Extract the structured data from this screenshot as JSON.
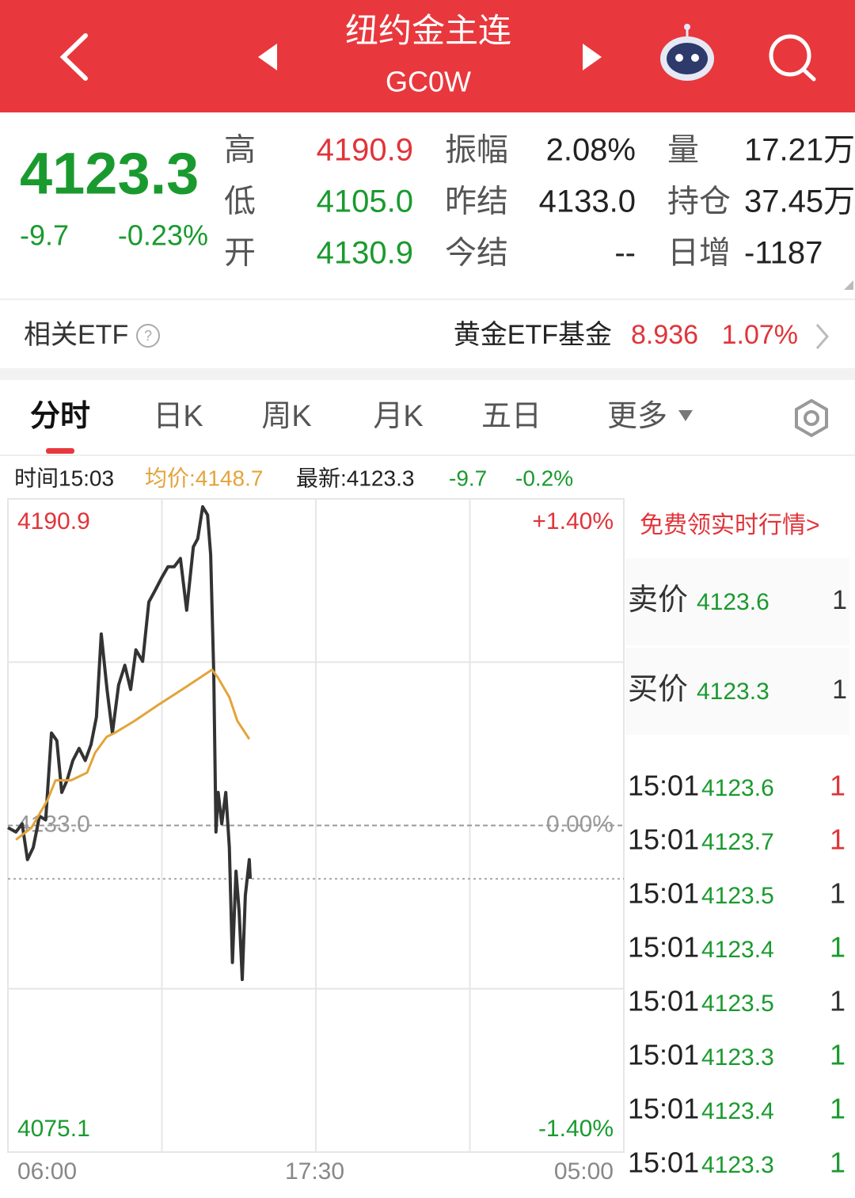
{
  "header": {
    "title": "纽约金主连",
    "code": "GC0W"
  },
  "quote": {
    "price": "4123.3",
    "change": "-9.7",
    "change_pct": "-0.23%",
    "color": "#1a9a2e"
  },
  "stats": [
    [
      {
        "label": "高",
        "value": "4190.9",
        "color": "#e0343a"
      },
      {
        "label": "振幅",
        "value": "2.08%",
        "color": "#222222"
      },
      {
        "label": "量",
        "value": "17.21万",
        "color": "#222222"
      }
    ],
    [
      {
        "label": "低",
        "value": "4105.0",
        "color": "#1a9a2e"
      },
      {
        "label": "昨结",
        "value": "4133.0",
        "color": "#222222"
      },
      {
        "label": "持仓",
        "value": "37.45万",
        "color": "#222222"
      }
    ],
    [
      {
        "label": "开",
        "value": "4130.9",
        "color": "#1a9a2e"
      },
      {
        "label": "今结",
        "value": "--",
        "color": "#222222"
      },
      {
        "label": "日增",
        "value": "-1187",
        "color": "#222222"
      }
    ]
  ],
  "etf": {
    "label": "相关ETF",
    "name": "黄金ETF基金",
    "price": "8.936",
    "pct": "1.07%"
  },
  "tabs": [
    "分时",
    "日K",
    "周K",
    "月K",
    "五日",
    "更多"
  ],
  "info": {
    "time": "时间15:03",
    "avg": "均价:4148.7",
    "latest": "最新:4123.3",
    "change": "-9.7",
    "pct": "-0.2%"
  },
  "chart_data": {
    "type": "line",
    "xlim": [
      0,
      1380
    ],
    "xticks": [
      {
        "value": 0,
        "label": "06:00"
      },
      {
        "value": 690,
        "label": "17:30"
      },
      {
        "value": 1380,
        "label": "05:00"
      }
    ],
    "ylim": [
      4075.1,
      4190.9
    ],
    "yticks": [
      4190.9,
      {
        "value": 4133,
        "label": "4133.0"
      },
      4075.1
    ],
    "y2lim": [
      -1.4,
      1.4
    ],
    "y2ticks": [
      {
        "value": 1.4,
        "label": "+1.40%"
      },
      {
        "value": 0,
        "label": "0.00%"
      },
      {
        "value": -1.4,
        "label": "-1.40%"
      }
    ],
    "series": [
      {
        "color": "#333333",
        "x": [
          0,
          18,
          32,
          44,
          57,
          71,
          85,
          98,
          110,
          121,
          133,
          146,
          160,
          174,
          187,
          199,
          210,
          223,
          235,
          249,
          263,
          276,
          288,
          303,
          317,
          331,
          345,
          360,
          374,
          388,
          402,
          417,
          427,
          438,
          449,
          456,
          463,
          468,
          473,
          481,
          490,
          498,
          505,
          513,
          520,
          527,
          534,
          543,
          545
        ],
        "values": [
          4132.6,
          4131.8,
          4133.3,
          4126.8,
          4129.0,
          4134.7,
          4134.0,
          4149.8,
          4148.4,
          4139.0,
          4141.2,
          4144.8,
          4147.0,
          4144.8,
          4147.7,
          4152.7,
          4167.8,
          4157.7,
          4149.8,
          4158.5,
          4162.1,
          4157.7,
          4164.9,
          4162.8,
          4173.6,
          4175.7,
          4177.9,
          4180.0,
          4180.0,
          4181.5,
          4172.1,
          4183.6,
          4185.1,
          4190.9,
          4189.4,
          4182.2,
          4160.6,
          4131.8,
          4139.0,
          4133.3,
          4139.0,
          4129.0,
          4108.1,
          4124.7,
          4117.5,
          4105.0,
          4120.3,
          4126.8,
          4123.3
        ]
      },
      {
        "color": "#e3a43a",
        "x": [
          18,
          53,
          89,
          107,
          142,
          178,
          196,
          222,
          240,
          285,
          338,
          392,
          459,
          472,
          498,
          516,
          543
        ],
        "values": [
          4130.4,
          4132.6,
          4137.6,
          4141.2,
          4141.2,
          4142.6,
          4146.2,
          4149.1,
          4149.8,
          4152.0,
          4154.9,
          4157.7,
          4161.3,
          4159.9,
          4156.3,
          4152.0,
          4148.7
        ]
      }
    ]
  },
  "order_book": {
    "promo": "免费领实时行情>",
    "quotes": [
      {
        "label": "卖价",
        "price": "4123.6",
        "volume": "1"
      },
      {
        "label": "买价",
        "price": "4123.3",
        "volume": "1"
      }
    ],
    "trades": [
      {
        "time": "15:01",
        "price": "4123.6",
        "volume": "1",
        "color": "#e0343a"
      },
      {
        "time": "15:01",
        "price": "4123.7",
        "volume": "1",
        "color": "#e0343a"
      },
      {
        "time": "15:01",
        "price": "4123.5",
        "volume": "1",
        "color": "#333333"
      },
      {
        "time": "15:01",
        "price": "4123.4",
        "volume": "1",
        "color": "#1a9a2e"
      },
      {
        "time": "15:01",
        "price": "4123.5",
        "volume": "1",
        "color": "#333333"
      },
      {
        "time": "15:01",
        "price": "4123.3",
        "volume": "1",
        "color": "#1a9a2e"
      },
      {
        "time": "15:01",
        "price": "4123.4",
        "volume": "1",
        "color": "#1a9a2e"
      },
      {
        "time": "15:01",
        "price": "4123.3",
        "volume": "1",
        "color": "#1a9a2e"
      }
    ]
  }
}
